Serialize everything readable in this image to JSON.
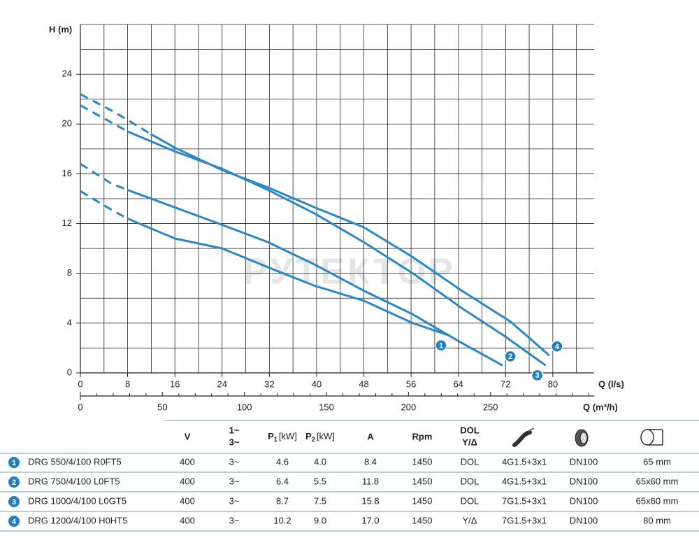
{
  "chart_data": {
    "type": "line",
    "y_label": "H (m)",
    "x_label": "Q (l/s)",
    "x2_label": "Q (m³/h)",
    "watermark": "РУТЕКТОР",
    "xlim": [
      0,
      87
    ],
    "ylim": [
      0,
      28
    ],
    "x2lim": [
      0,
      313.2
    ],
    "xticks": [
      0,
      8,
      16,
      24,
      32,
      40,
      48,
      56,
      64,
      72,
      80
    ],
    "yticks": [
      0,
      4,
      8,
      12,
      16,
      20,
      24
    ],
    "x2ticks": [
      0,
      50,
      100,
      150,
      200,
      250
    ],
    "x2minor_ticks": [
      10,
      20,
      30,
      40,
      60,
      70,
      80,
      90,
      110,
      120,
      130,
      140,
      160,
      170,
      180,
      190,
      210,
      220,
      230,
      240,
      260,
      270,
      280,
      290,
      300,
      310
    ],
    "xgrid": [
      4,
      8,
      12,
      16,
      20,
      24,
      28,
      32,
      36,
      40,
      44,
      48,
      52,
      56,
      60,
      64,
      68,
      72,
      76,
      80,
      84
    ],
    "ygrid": [
      2,
      4,
      6,
      8,
      10,
      12,
      14,
      16,
      18,
      20,
      22,
      24,
      26,
      28
    ],
    "grid": true,
    "series": [
      {
        "name": "1",
        "color": "#2b87c5",
        "label_side": "left",
        "segments": [
          {
            "style": "dashed",
            "x": [
              0,
              5.3,
              8
            ],
            "values": [
              14.6,
              13.1,
              12.4
            ]
          },
          {
            "style": "solid",
            "x": [
              8,
              16,
              24,
              33.8,
              39.7,
              48,
              56.3,
              62.5
            ],
            "values": [
              12.4,
              10.8,
              10.0,
              8.1,
              7.0,
              5.8,
              4.0,
              3.0
            ]
          }
        ]
      },
      {
        "name": "2",
        "color": "#2b87c5",
        "label_side": "right",
        "segments": [
          {
            "style": "dashed",
            "x": [
              0,
              5.3,
              8
            ],
            "values": [
              16.8,
              15.2,
              14.7
            ]
          },
          {
            "style": "solid",
            "x": [
              8,
              16,
              24,
              31.8,
              39.7,
              48,
              56.3,
              64.6,
              71.5
            ],
            "values": [
              14.7,
              13.3,
              11.9,
              10.5,
              8.7,
              6.6,
              4.7,
              2.4,
              0.6
            ]
          }
        ]
      },
      {
        "name": "3",
        "color": "#2b87c5",
        "label_side": "left",
        "segments": [
          {
            "style": "dashed",
            "x": [
              0,
              6.5,
              8
            ],
            "values": [
              21.5,
              19.8,
              19.4
            ]
          },
          {
            "style": "solid",
            "x": [
              8,
              16,
              24,
              31.8,
              39.7,
              48,
              56.3,
              64.6,
              71.7,
              78.8
            ],
            "values": [
              19.4,
              17.8,
              16.4,
              14.7,
              12.8,
              10.5,
              8.0,
              5.2,
              3.0,
              0.6
            ]
          }
        ]
      },
      {
        "name": "4",
        "color": "#2b87c5",
        "label_side": "right",
        "segments": [
          {
            "style": "dashed",
            "x": [
              0,
              6,
              11.9
            ],
            "values": [
              22.4,
              20.9,
              19.2
            ]
          },
          {
            "style": "solid",
            "x": [
              11.9,
              16,
              24,
              31.8,
              39.7,
              48,
              56.3,
              64.6,
              72.9,
              79.4
            ],
            "values": [
              19.2,
              18.1,
              16.3,
              14.9,
              13.3,
              11.7,
              9.3,
              6.6,
              4.1,
              1.4
            ]
          }
        ]
      }
    ]
  },
  "table": {
    "header": [
      "V",
      [
        "1~",
        "3~"
      ],
      {
        "main": "P",
        "sub": "1",
        "unit": "[kW]"
      },
      {
        "main": "P",
        "sub": "2",
        "unit": "[kW]"
      },
      "A",
      "Rpm",
      [
        "DOL",
        "Y/Δ"
      ]
    ],
    "rows": [
      [
        "1",
        "DRG 550/4/100 R0FT5",
        "400",
        "3~",
        "4.6",
        "4.0",
        "8.4",
        "1450",
        "DOL",
        "4G1.5+3x1",
        "DN100",
        "65 mm"
      ],
      [
        "2",
        "DRG 750/4/100 L0FT5",
        "400",
        "3~",
        "6.4",
        "5.5",
        "11.8",
        "1450",
        "DOL",
        "4G1.5+3x1",
        "DN100",
        "65x60 mm"
      ],
      [
        "3",
        "DRG 1000/4/100 L0GT5",
        "400",
        "3~",
        "8.7",
        "7.5",
        "15.8",
        "1450",
        "DOL",
        "7G1.5+3x1",
        "DN100",
        "65x60 mm"
      ],
      [
        "4",
        "DRG 1200/4/100 H0HT5",
        "400",
        "3~",
        "10.2",
        "9.0",
        "17.0",
        "1450",
        "Y/Δ",
        "7G1.5+3x1",
        "DN100",
        "80 mm"
      ]
    ]
  }
}
